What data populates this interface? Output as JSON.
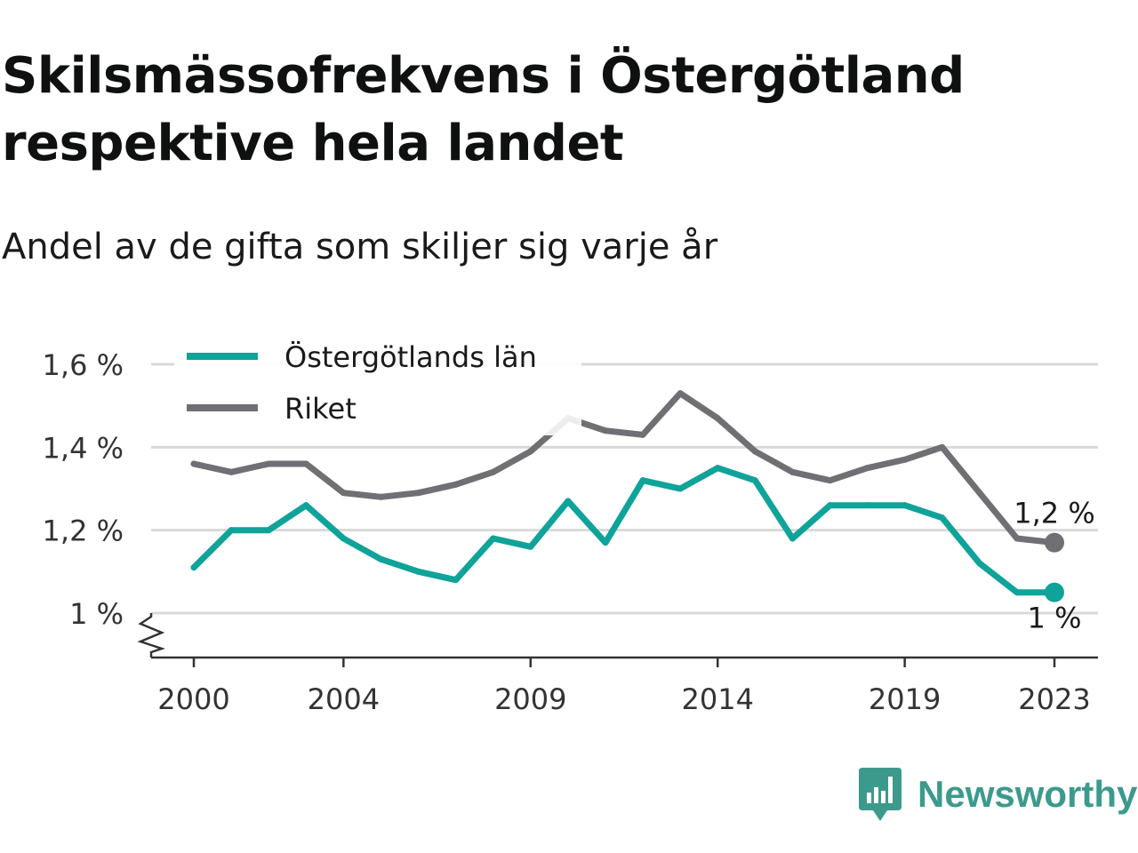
{
  "title": "Skilsmässofrekvens i Östergötland respektive hela landet",
  "subtitle": "Andel av de gifta som skiljer sig varje år",
  "brand": {
    "name": "Newsworthy"
  },
  "colors": {
    "ostergotland": "#0fa39a",
    "riket": "#6f6f74",
    "grid": "#d9d9d9",
    "axis": "#333333"
  },
  "chart_data": {
    "type": "line",
    "x": [
      2000,
      2001,
      2002,
      2003,
      2004,
      2005,
      2006,
      2007,
      2008,
      2009,
      2010,
      2011,
      2012,
      2013,
      2014,
      2015,
      2016,
      2017,
      2018,
      2019,
      2020,
      2021,
      2022,
      2023
    ],
    "xticks": [
      2000,
      2004,
      2009,
      2014,
      2019,
      2023
    ],
    "ylim": [
      0.9,
      1.6
    ],
    "yticks": [
      {
        "value": 1.0,
        "label": "1 %"
      },
      {
        "value": 1.2,
        "label": "1,2 %"
      },
      {
        "value": 1.4,
        "label": "1,4 %"
      },
      {
        "value": 1.6,
        "label": "1,6 %"
      }
    ],
    "grid": true,
    "legend_position": "top-left",
    "series": [
      {
        "name": "Östergötlands län",
        "color": "#0fa39a",
        "values": [
          1.11,
          1.2,
          1.2,
          1.26,
          1.18,
          1.13,
          1.1,
          1.08,
          1.18,
          1.16,
          1.27,
          1.17,
          1.32,
          1.3,
          1.35,
          1.32,
          1.18,
          1.26,
          1.26,
          1.26,
          1.23,
          1.12,
          1.05,
          1.05
        ],
        "end_label": "1 %"
      },
      {
        "name": "Riket",
        "color": "#6f6f74",
        "values": [
          1.36,
          1.34,
          1.36,
          1.36,
          1.29,
          1.28,
          1.29,
          1.31,
          1.34,
          1.39,
          1.47,
          1.44,
          1.43,
          1.53,
          1.47,
          1.39,
          1.34,
          1.32,
          1.35,
          1.37,
          1.4,
          1.29,
          1.18,
          1.17
        ],
        "end_label": "1,2 %"
      }
    ]
  }
}
